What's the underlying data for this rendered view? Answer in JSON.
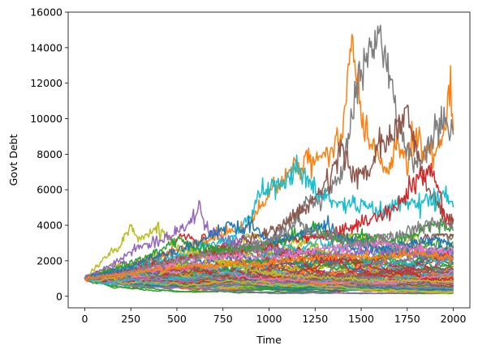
{
  "chart_data": {
    "type": "line",
    "title": "",
    "xlabel": "Time",
    "ylabel": "Govt Debt",
    "xlim": [
      -90,
      2090
    ],
    "ylim": [
      -650,
      16000
    ],
    "xticks": [
      0,
      250,
      500,
      750,
      1000,
      1250,
      1500,
      1750,
      2000
    ],
    "yticks": [
      0,
      2000,
      4000,
      6000,
      8000,
      10000,
      12000,
      14000,
      16000
    ],
    "grid": false,
    "legend": "none",
    "palette": [
      "#1f77b4",
      "#ff7f0e",
      "#2ca02c",
      "#d62728",
      "#9467bd",
      "#8c564b",
      "#e377c2",
      "#7f7f7f",
      "#bcbd22",
      "#17becf"
    ],
    "simulation": {
      "paths": 100,
      "steps": 2000,
      "initial_value": 1000
    },
    "series": [
      {
        "color": "#ff7f0e",
        "points": [
          [
            0,
            1000
          ],
          [
            200,
            1500
          ],
          [
            400,
            2200
          ],
          [
            600,
            2900
          ],
          [
            800,
            3700
          ],
          [
            900,
            4200
          ],
          [
            1000,
            5800
          ],
          [
            1100,
            6800
          ],
          [
            1200,
            7600
          ],
          [
            1300,
            7900
          ],
          [
            1350,
            8200
          ],
          [
            1400,
            9800
          ],
          [
            1430,
            12700
          ],
          [
            1450,
            14800
          ],
          [
            1470,
            12200
          ],
          [
            1500,
            10400
          ],
          [
            1550,
            8600
          ],
          [
            1600,
            8100
          ],
          [
            1650,
            7200
          ],
          [
            1700,
            8800
          ],
          [
            1750,
            7300
          ],
          [
            1800,
            9100
          ],
          [
            1850,
            8200
          ],
          [
            1900,
            7900
          ],
          [
            1950,
            9100
          ],
          [
            1980,
            11600
          ],
          [
            2000,
            9300
          ]
        ]
      },
      {
        "color": "#7f7f7f",
        "points": [
          [
            0,
            1000
          ],
          [
            200,
            1300
          ],
          [
            400,
            1800
          ],
          [
            600,
            2300
          ],
          [
            800,
            2600
          ],
          [
            1000,
            3200
          ],
          [
            1100,
            4000
          ],
          [
            1200,
            5200
          ],
          [
            1300,
            5800
          ],
          [
            1400,
            7100
          ],
          [
            1450,
            10500
          ],
          [
            1500,
            12800
          ],
          [
            1550,
            14100
          ],
          [
            1600,
            15200
          ],
          [
            1630,
            12800
          ],
          [
            1660,
            12200
          ],
          [
            1700,
            10100
          ],
          [
            1750,
            8100
          ],
          [
            1800,
            7200
          ],
          [
            1850,
            8000
          ],
          [
            1900,
            9200
          ],
          [
            1950,
            9900
          ],
          [
            2000,
            9100
          ]
        ]
      },
      {
        "color": "#8c564b",
        "points": [
          [
            0,
            1000
          ],
          [
            200,
            1400
          ],
          [
            400,
            1900
          ],
          [
            600,
            2400
          ],
          [
            800,
            2900
          ],
          [
            1000,
            3600
          ],
          [
            1100,
            4200
          ],
          [
            1200,
            5000
          ],
          [
            1300,
            6200
          ],
          [
            1400,
            8500
          ],
          [
            1450,
            6800
          ],
          [
            1500,
            6900
          ],
          [
            1550,
            7000
          ],
          [
            1600,
            9000
          ],
          [
            1650,
            8700
          ],
          [
            1700,
            9400
          ],
          [
            1750,
            10700
          ],
          [
            1800,
            8200
          ],
          [
            1850,
            6400
          ],
          [
            1900,
            5500
          ],
          [
            1950,
            4500
          ],
          [
            2000,
            4300
          ]
        ]
      },
      {
        "color": "#17becf",
        "points": [
          [
            0,
            1000
          ],
          [
            200,
            1500
          ],
          [
            400,
            2000
          ],
          [
            600,
            2600
          ],
          [
            800,
            3400
          ],
          [
            900,
            4500
          ],
          [
            950,
            5900
          ],
          [
            1000,
            6100
          ],
          [
            1050,
            6200
          ],
          [
            1100,
            6500
          ],
          [
            1150,
            7300
          ],
          [
            1200,
            6500
          ],
          [
            1300,
            5600
          ],
          [
            1400,
            5200
          ],
          [
            1500,
            5100
          ],
          [
            1600,
            4700
          ],
          [
            1700,
            5300
          ],
          [
            1800,
            5200
          ],
          [
            1900,
            5400
          ],
          [
            1950,
            6100
          ],
          [
            2000,
            5000
          ]
        ]
      },
      {
        "color": "#d62728",
        "points": [
          [
            0,
            1000
          ],
          [
            200,
            1400
          ],
          [
            400,
            1800
          ],
          [
            600,
            2200
          ],
          [
            800,
            2500
          ],
          [
            1000,
            2900
          ],
          [
            1200,
            3300
          ],
          [
            1400,
            3700
          ],
          [
            1500,
            4200
          ],
          [
            1600,
            4500
          ],
          [
            1700,
            5200
          ],
          [
            1800,
            6500
          ],
          [
            1850,
            6800
          ],
          [
            1880,
            7200
          ],
          [
            1920,
            6100
          ],
          [
            1950,
            4500
          ],
          [
            2000,
            4300
          ]
        ]
      },
      {
        "color": "#bcbd22",
        "points": [
          [
            0,
            1000
          ],
          [
            100,
            2000
          ],
          [
            200,
            3000
          ],
          [
            250,
            3900
          ],
          [
            300,
            3200
          ],
          [
            350,
            3600
          ],
          [
            400,
            3900
          ],
          [
            450,
            3200
          ],
          [
            500,
            2800
          ],
          [
            600,
            2400
          ],
          [
            700,
            2100
          ],
          [
            800,
            1800
          ],
          [
            900,
            1500
          ],
          [
            1000,
            1300
          ],
          [
            1200,
            1100
          ],
          [
            1400,
            1000
          ],
          [
            1600,
            900
          ],
          [
            1800,
            900
          ],
          [
            2000,
            800
          ]
        ]
      },
      {
        "color": "#9467bd",
        "points": [
          [
            0,
            1000
          ],
          [
            150,
            1800
          ],
          [
            300,
            2800
          ],
          [
            450,
            3300
          ],
          [
            550,
            4000
          ],
          [
            600,
            4600
          ],
          [
            620,
            5100
          ],
          [
            650,
            4100
          ],
          [
            700,
            3500
          ],
          [
            800,
            3000
          ],
          [
            900,
            2700
          ],
          [
            1000,
            2600
          ],
          [
            1200,
            2500
          ],
          [
            1400,
            2300
          ],
          [
            1600,
            2600
          ],
          [
            1800,
            2400
          ],
          [
            2000,
            2100
          ]
        ]
      },
      {
        "color": "#2ca02c",
        "points": [
          [
            0,
            1000
          ],
          [
            200,
            1700
          ],
          [
            400,
            2500
          ],
          [
            500,
            3200
          ],
          [
            600,
            2700
          ],
          [
            800,
            2600
          ],
          [
            1000,
            2900
          ],
          [
            1100,
            3300
          ],
          [
            1200,
            3600
          ],
          [
            1250,
            4000
          ],
          [
            1300,
            3500
          ],
          [
            1400,
            3100
          ],
          [
            1500,
            3400
          ],
          [
            1600,
            3000
          ],
          [
            1700,
            3300
          ],
          [
            1800,
            3500
          ],
          [
            1900,
            4100
          ],
          [
            2000,
            3700
          ]
        ]
      },
      {
        "color": "#1f77b4",
        "points": [
          [
            0,
            1000
          ],
          [
            200,
            1500
          ],
          [
            400,
            2300
          ],
          [
            600,
            2900
          ],
          [
            700,
            3600
          ],
          [
            800,
            4100
          ],
          [
            850,
            3600
          ],
          [
            900,
            4300
          ],
          [
            950,
            3600
          ],
          [
            1000,
            3100
          ],
          [
            1100,
            3300
          ],
          [
            1200,
            3500
          ],
          [
            1300,
            4000
          ],
          [
            1400,
            3300
          ],
          [
            1500,
            3000
          ],
          [
            1600,
            2600
          ],
          [
            1700,
            2900
          ],
          [
            1800,
            3000
          ],
          [
            1900,
            3300
          ],
          [
            2000,
            2800
          ]
        ]
      },
      {
        "color": "#e377c2",
        "points": [
          [
            0,
            1000
          ],
          [
            200,
            1300
          ],
          [
            400,
            1700
          ],
          [
            600,
            2100
          ],
          [
            800,
            2300
          ],
          [
            1000,
            2200
          ],
          [
            1200,
            2500
          ],
          [
            1400,
            2800
          ],
          [
            1600,
            3000
          ],
          [
            1800,
            2700
          ],
          [
            2000,
            2500
          ]
        ]
      },
      {
        "color": "#7f7f7f",
        "points": [
          [
            0,
            1000
          ],
          [
            200,
            1300
          ],
          [
            400,
            1800
          ],
          [
            600,
            2200
          ],
          [
            800,
            2500
          ],
          [
            1000,
            3000
          ],
          [
            1100,
            3600
          ],
          [
            1150,
            4300
          ],
          [
            1200,
            3800
          ],
          [
            1300,
            3500
          ],
          [
            1400,
            3200
          ],
          [
            1500,
            3000
          ],
          [
            1600,
            3200
          ],
          [
            1700,
            3500
          ],
          [
            1800,
            3800
          ],
          [
            1900,
            4200
          ],
          [
            2000,
            3900
          ]
        ]
      },
      {
        "color": "#ff7f0e",
        "points": [
          [
            0,
            1000
          ],
          [
            200,
            1200
          ],
          [
            400,
            1500
          ],
          [
            600,
            1700
          ],
          [
            800,
            1800
          ],
          [
            1000,
            1900
          ],
          [
            1200,
            2100
          ],
          [
            1400,
            2300
          ],
          [
            1600,
            2200
          ],
          [
            1800,
            2400
          ],
          [
            2000,
            2200
          ]
        ]
      }
    ]
  }
}
